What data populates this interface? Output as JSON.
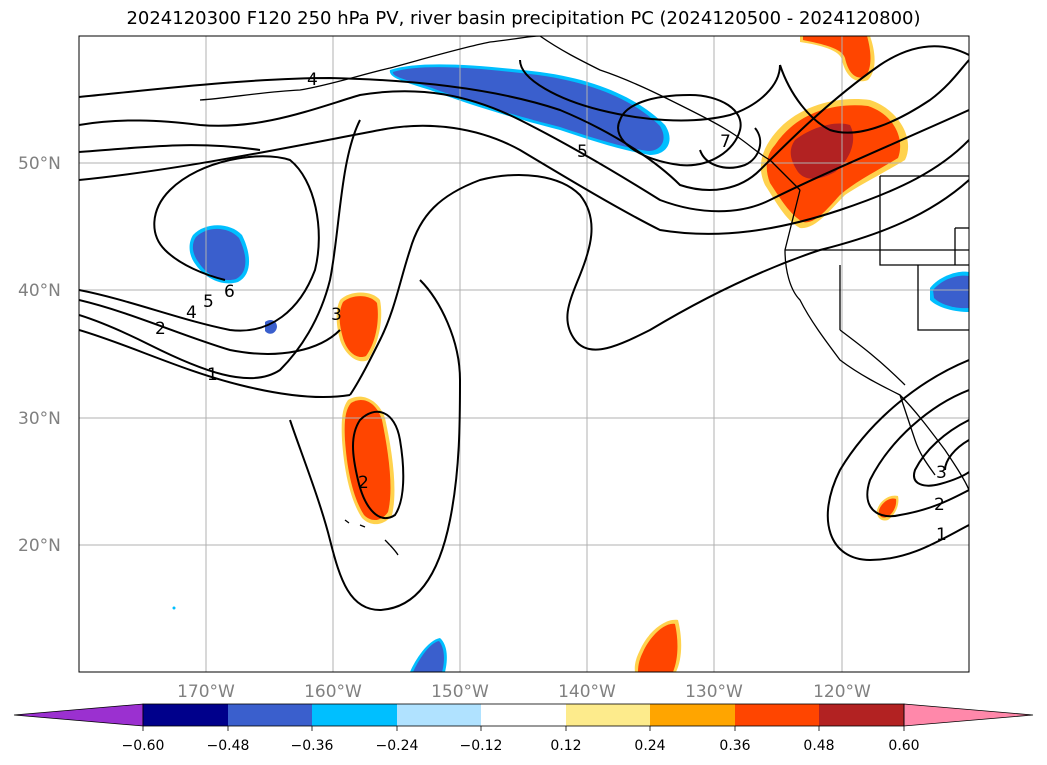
{
  "title": "2024120300 F120 250 hPa PV, river basin precipitation PC (2024120500 - 2024120800)",
  "lat_labels": [
    "50°N",
    "40°N",
    "30°N",
    "20°N"
  ],
  "lon_labels": [
    "170°W",
    "160°W",
    "150°W",
    "140°W",
    "130°W",
    "120°W"
  ],
  "pv_contour_labels": [
    "4",
    "5",
    "7",
    "6",
    "5",
    "4",
    "2",
    "1",
    "3",
    "2",
    "3",
    "2",
    "1"
  ],
  "colorbar": {
    "ticks": [
      "−0.60",
      "−0.48",
      "−0.36",
      "−0.24",
      "−0.12",
      "0.12",
      "0.24",
      "0.36",
      "0.48",
      "0.60"
    ],
    "colors": [
      "#9b30d0",
      "#00008b",
      "#3a5fcd",
      "#00bfff",
      "#b0e2ff",
      "#ffffff",
      "#fdeb8c",
      "#ffa500",
      "#ff4500",
      "#b22222",
      "#ff88aa",
      "#ff88aa"
    ]
  },
  "map": {
    "extent": {
      "lon": [
        -180,
        -110
      ],
      "lat": [
        10,
        60
      ]
    },
    "gridlines": true,
    "fields": [
      "250 hPa PV (contours)",
      "precipitation PC (shaded)"
    ]
  }
}
